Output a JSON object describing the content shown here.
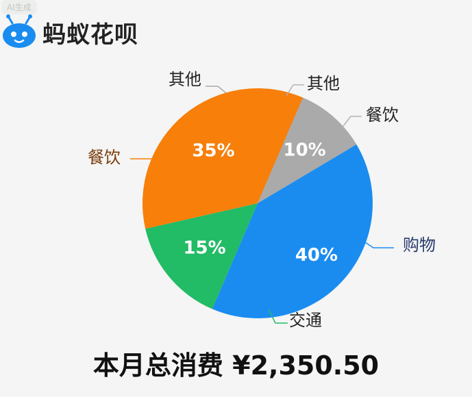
{
  "watermark": "AI生成",
  "brand": {
    "name": "蚂蚁花呗",
    "logo_icon": "ant-mascot-icon",
    "color": "#1a8cf0"
  },
  "chart_data": {
    "type": "pie",
    "title": "",
    "slices": [
      {
        "label": "购物",
        "value": 40,
        "data_label": "40%",
        "color": "#1a8cf0",
        "label_color": "#2a3a6e"
      },
      {
        "label": "交通",
        "value": 15,
        "data_label": "15%",
        "color": "#22bb66",
        "label_color": "#222222"
      },
      {
        "label": "餐饮",
        "value": 35,
        "data_label": "35%",
        "color": "#f77f0a",
        "label_color": "#7a3a0a"
      },
      {
        "label": "其他",
        "value": 10,
        "data_label": "10%",
        "color": "#aaaaaa",
        "label_color": "#222222"
      }
    ],
    "extra_outer_labels": [
      "其他",
      "餐饮"
    ]
  },
  "total": {
    "text": "本月总消费 ¥2,350.50"
  }
}
